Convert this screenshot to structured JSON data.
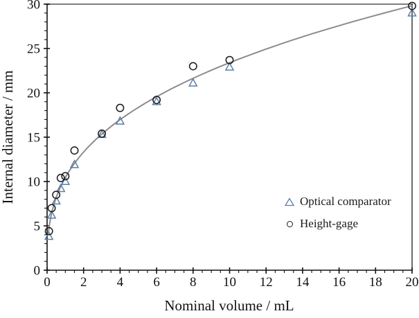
{
  "chart_data": {
    "type": "scatter",
    "title": "",
    "xlabel": "Nominal volume / mL",
    "ylabel": "Internal diameter / mm",
    "xlim": [
      0,
      20
    ],
    "ylim": [
      0,
      30
    ],
    "x_major_ticks": [
      0,
      2,
      4,
      6,
      8,
      10,
      12,
      14,
      16,
      18,
      20
    ],
    "x_minor_step": 0.5,
    "y_major_ticks": [
      0,
      5,
      10,
      15,
      20,
      25,
      30
    ],
    "y_minor_step": 1,
    "grid": false,
    "legend_position": "inside-lower-right",
    "series": [
      {
        "name": "Optical comparator",
        "marker": "triangle",
        "color": "#5c7ea8",
        "x": [
          0.1,
          0.25,
          0.5,
          0.75,
          1,
          1.5,
          3,
          4,
          6,
          8,
          10,
          20
        ],
        "y": [
          3.8,
          6.2,
          7.8,
          9.2,
          10.0,
          11.9,
          15.3,
          16.8,
          19.0,
          21.1,
          22.9,
          29.0
        ]
      },
      {
        "name": "Height-gage",
        "marker": "circle",
        "color": "#1a1a1a",
        "x": [
          0.1,
          0.25,
          0.5,
          0.75,
          1,
          1.5,
          3,
          4,
          6,
          8,
          10,
          20
        ],
        "y": [
          4.4,
          7.0,
          8.5,
          10.4,
          10.6,
          13.5,
          15.4,
          18.3,
          19.2,
          23.0,
          23.7,
          29.8
        ]
      }
    ],
    "fit_curve": {
      "type": "power",
      "coefficient": 10.45,
      "exponent": 0.35,
      "x_start": 0.07,
      "x_end": 20,
      "color": "#8c8c8c"
    },
    "frame_top_color": "#7f7f7f",
    "frame_right_color": "#3a3a3a",
    "axis_color": "#111111"
  }
}
